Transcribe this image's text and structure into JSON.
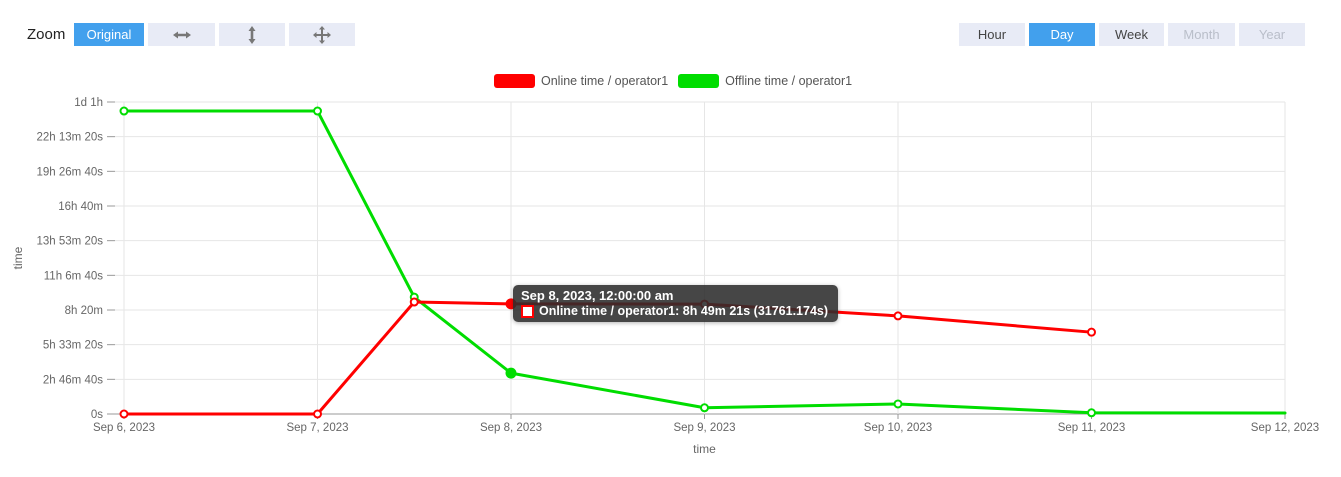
{
  "toolbar": {
    "zoom_label": "Zoom",
    "original_button": "Original",
    "icons": [
      "resize-horizontal-icon",
      "resize-vertical-icon",
      "move-icon"
    ]
  },
  "range_buttons": [
    {
      "label": "Hour",
      "state": "normal"
    },
    {
      "label": "Day",
      "state": "active"
    },
    {
      "label": "Week",
      "state": "normal"
    },
    {
      "label": "Month",
      "state": "disabled"
    },
    {
      "label": "Year",
      "state": "disabled"
    }
  ],
  "colors": {
    "accent_blue": "#42a0ed",
    "online_red": "#ff0000",
    "offline_green": "#00dd00",
    "button_bg": "#e8ebf6",
    "gridline": "#e6e6e6",
    "axis": "#999999",
    "tick_text": "#666666"
  },
  "tooltip": {
    "header": "Sep 8, 2023, 12:00:00 am",
    "line_text": "Online time / operator1: 8h 49m 21s (31761.174s)",
    "swatch": "online-series-swatch"
  },
  "chart_data": {
    "type": "line",
    "grid": true,
    "legend_position": "top-center",
    "x_axis": {
      "title": "time",
      "tick_labels": [
        "Sep 6, 2023",
        "Sep 7, 2023",
        "Sep 8, 2023",
        "Sep 9, 2023",
        "Sep 10, 2023",
        "Sep 11, 2023",
        "Sep 12, 2023"
      ]
    },
    "y_axis": {
      "title": "time",
      "tick_labels": [
        "0s",
        "2h 46m 40s",
        "5h 33m 20s",
        "8h 20m",
        "11h 6m 40s",
        "13h 53m 20s",
        "16h 40m",
        "19h 26m 40s",
        "22h 13m 20s",
        "1d 1h"
      ],
      "tick_values_seconds": [
        0,
        10000,
        20000,
        30000,
        40000,
        50000,
        60000,
        70000,
        80000,
        90000
      ],
      "range_seconds": [
        0,
        90000
      ]
    },
    "series": [
      {
        "name": "Offline time / operator1",
        "color": "#00dd00",
        "points": [
          {
            "x_days": 0,
            "seconds": 87400
          },
          {
            "x_days": 1,
            "seconds": 87400
          },
          {
            "x_days": 1.5,
            "seconds": 33700
          },
          {
            "x_days": 2,
            "seconds": 11800,
            "hovered": true
          },
          {
            "x_days": 3,
            "seconds": 1800
          },
          {
            "x_days": 4,
            "seconds": 2900
          },
          {
            "x_days": 5,
            "seconds": 350
          },
          {
            "x_days": 6,
            "seconds": 300,
            "marker": false
          }
        ]
      },
      {
        "name": "Online time / operator1",
        "color": "#ff0000",
        "points": [
          {
            "x_days": 0,
            "seconds": 0
          },
          {
            "x_days": 1,
            "seconds": 0
          },
          {
            "x_days": 1.5,
            "seconds": 32300
          },
          {
            "x_days": 2,
            "seconds": 31761.174,
            "hovered": true
          },
          {
            "x_days": 3,
            "seconds": 31700
          },
          {
            "x_days": 4,
            "seconds": 28300
          },
          {
            "x_days": 5,
            "seconds": 23600
          }
        ]
      }
    ]
  }
}
